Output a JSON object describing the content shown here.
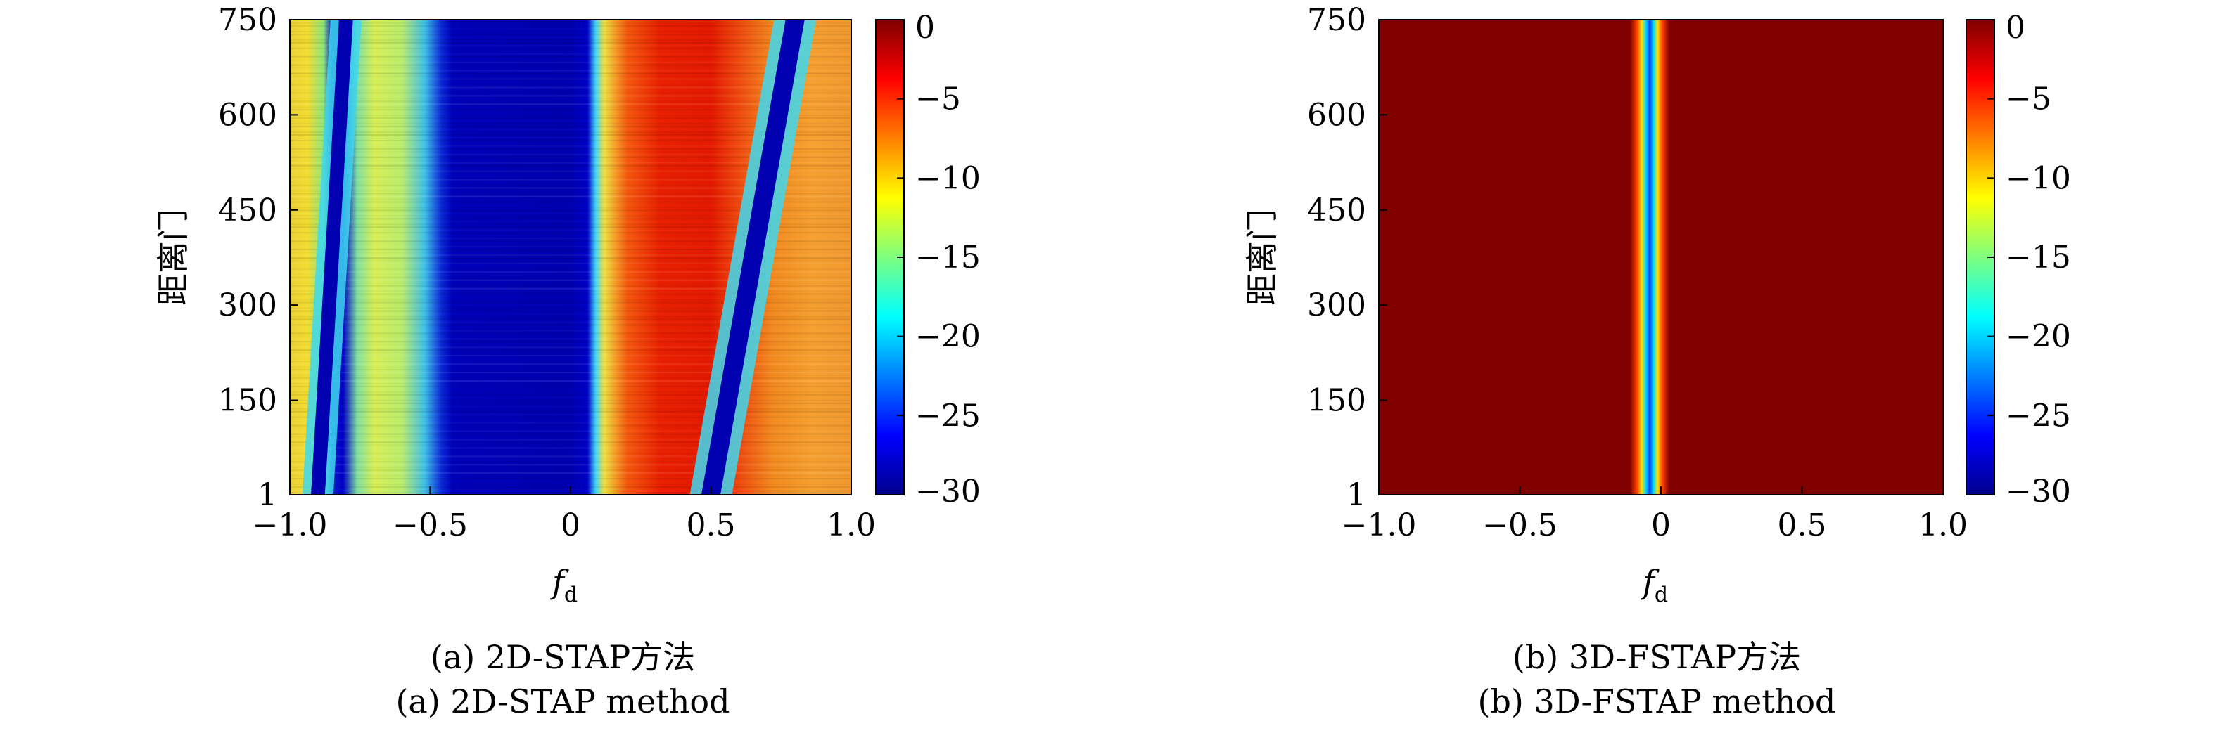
{
  "chart_data": [
    {
      "type": "heatmap",
      "panel": "a",
      "caption_zh": "(a) 2D-STAP方法",
      "caption_en": "(a) 2D-STAP method",
      "xlabel": "f",
      "xlabel_sub": "d",
      "ylabel": "距离门",
      "xlim": [
        -1.0,
        1.0
      ],
      "ylim": [
        1,
        750
      ],
      "xticks": [
        "−1.0",
        "−0.5",
        "0",
        "0.5",
        "1.0"
      ],
      "xtick_values": [
        -1.0,
        -0.5,
        0,
        0.5,
        1.0
      ],
      "yticks": [
        "1",
        "150",
        "300",
        "450",
        "600",
        "750"
      ],
      "ytick_values": [
        1,
        150,
        300,
        450,
        600,
        750
      ],
      "colorbar": {
        "min": -30,
        "max": 0,
        "ticks": [
          "0",
          "−5",
          "−10",
          "−15",
          "−20",
          "−25",
          "−30"
        ],
        "tick_values": [
          0,
          -5,
          -10,
          -15,
          -20,
          -25,
          -30
        ],
        "colormap": "jet"
      },
      "description_features": {
        "notch_fd": [
          -0.4,
          0.08
        ],
        "clutter_ridges": [
          {
            "fd_at_min_range": -0.9,
            "fd_at_max_range": -0.8
          },
          {
            "fd_at_min_range": 0.5,
            "fd_at_max_range": 0.8
          }
        ]
      }
    },
    {
      "type": "heatmap",
      "panel": "b",
      "caption_zh": "(b) 3D-FSTAP方法",
      "caption_en": "(b) 3D-FSTAP method",
      "xlabel": "f",
      "xlabel_sub": "d",
      "ylabel": "距离门",
      "xlim": [
        -1.0,
        1.0
      ],
      "ylim": [
        1,
        750
      ],
      "xticks": [
        "−1.0",
        "−0.5",
        "0",
        "0.5",
        "1.0"
      ],
      "xtick_values": [
        -1.0,
        -0.5,
        0,
        0.5,
        1.0
      ],
      "yticks": [
        "1",
        "150",
        "300",
        "450",
        "600",
        "750"
      ],
      "ytick_values": [
        1,
        150,
        300,
        450,
        600,
        750
      ],
      "colorbar": {
        "min": -30,
        "max": 0,
        "ticks": [
          "0",
          "−5",
          "−10",
          "−15",
          "−20",
          "−25",
          "−30"
        ],
        "tick_values": [
          0,
          -5,
          -10,
          -15,
          -20,
          -25,
          -30
        ],
        "colormap": "jet"
      },
      "description_features": {
        "notch_center_fd": -0.04,
        "notch_width_fd": 0.07
      }
    }
  ]
}
